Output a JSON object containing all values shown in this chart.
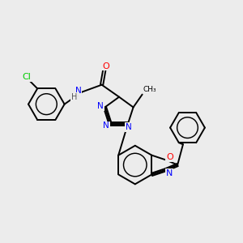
{
  "bg_color": "#ececec",
  "bond_color": "#000000",
  "bond_width": 1.4,
  "fig_size": [
    3.0,
    3.0
  ],
  "dpi": 100,
  "atom_colors": {
    "N": "#0000ff",
    "O": "#ff0000",
    "Cl": "#00cc00",
    "C": "#000000",
    "H": "#555555"
  },
  "scale": 1.0
}
